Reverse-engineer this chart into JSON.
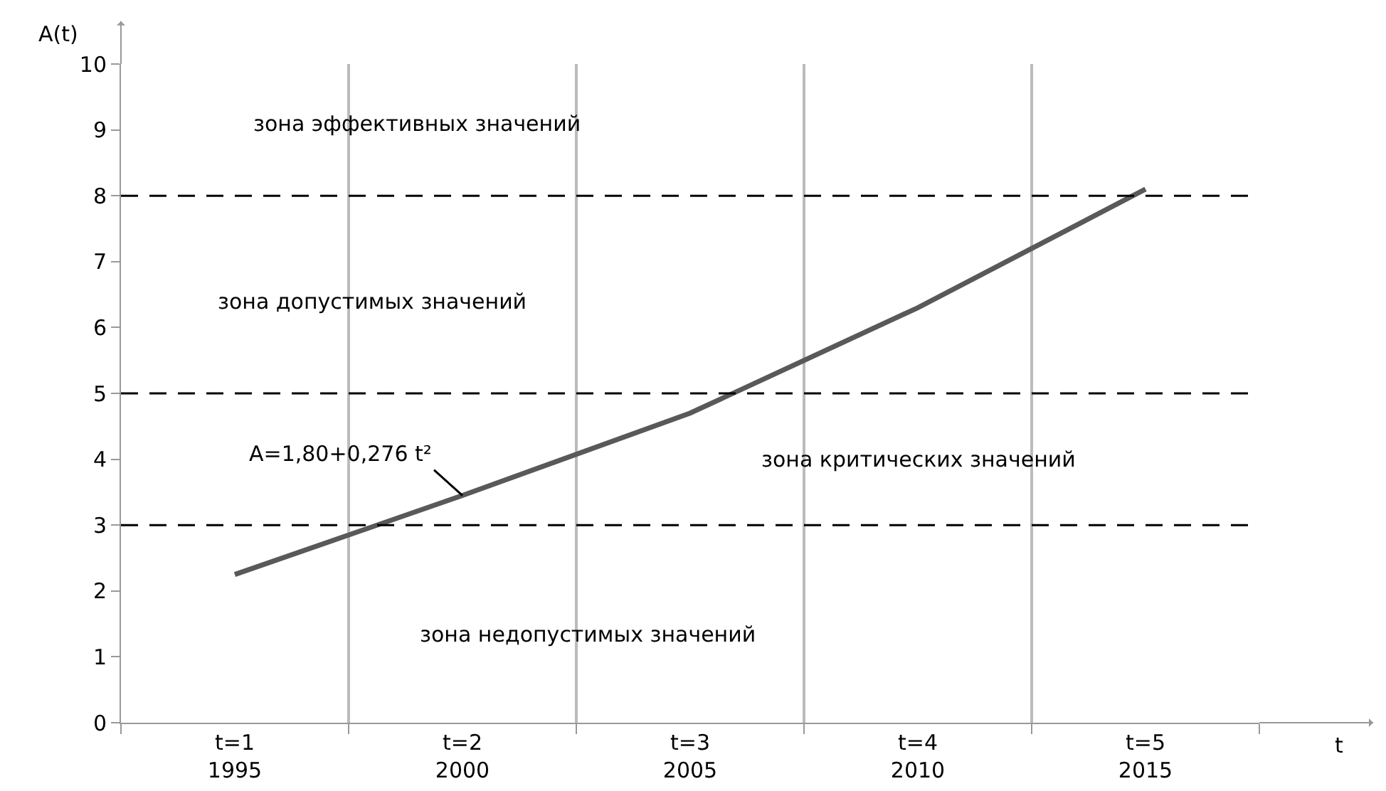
{
  "chart_data": {
    "type": "line",
    "xlabel": "t",
    "ylabel": "A(t)",
    "categories": [
      "t=1\n1995",
      "t=2\n2000",
      "t=3\n2005",
      "t=4\n2010",
      "t=5\n2015"
    ],
    "series": [
      {
        "color": "#595959",
        "values": [
          2.25,
          3.45,
          4.7,
          6.3,
          8.1
        ]
      }
    ],
    "ylim": [
      0,
      10
    ],
    "yticks": [
      0,
      1,
      2,
      3,
      4,
      5,
      6,
      7,
      8,
      9,
      10
    ],
    "grid": "x",
    "marker": "none",
    "line_style": "solid",
    "ref_lines": [
      {
        "axis": "y",
        "value": 3,
        "color": "#000000",
        "line_style": "dashed"
      },
      {
        "axis": "y",
        "value": 5,
        "color": "#000000",
        "line_style": "dashed"
      },
      {
        "axis": "y",
        "value": 8,
        "color": "#000000",
        "line_style": "dashed"
      }
    ],
    "annotations": [
      "зона эффективных значений",
      "зона допустимых значений",
      "зона критических значений",
      "зона недопустимых значений",
      {
        "text": "A=1,80+0,276 t²",
        "x": "t=2\n2000",
        "y": 3.45
      }
    ]
  }
}
